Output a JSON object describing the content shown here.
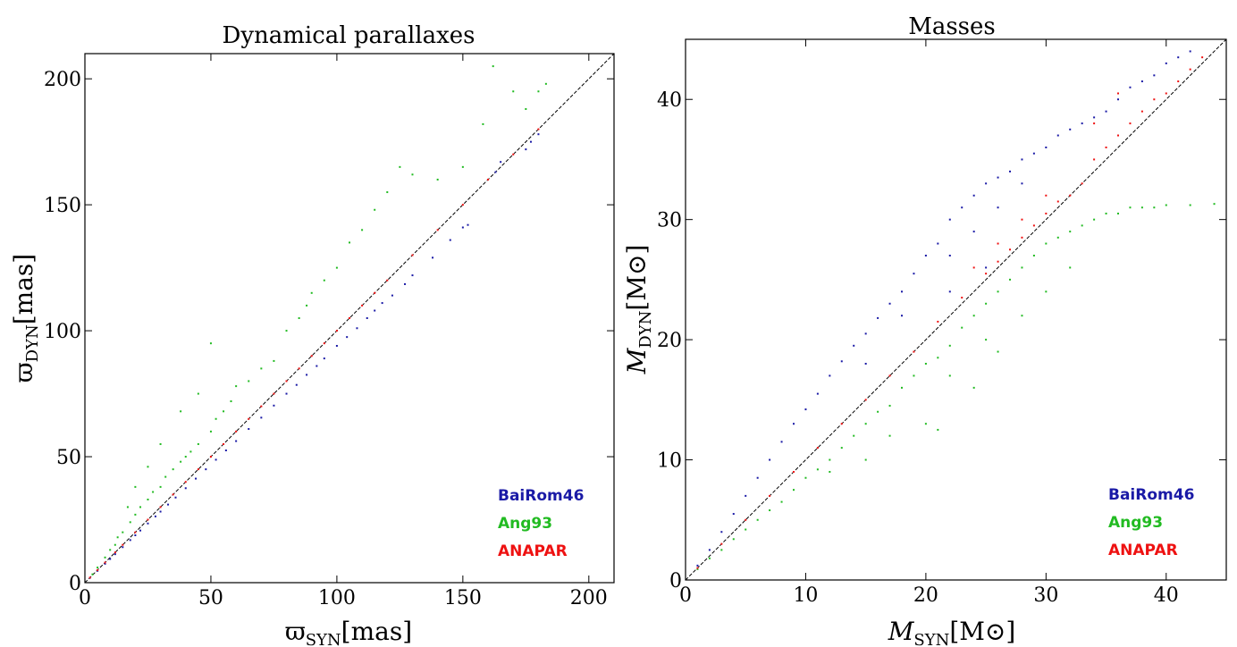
{
  "colors": {
    "BaiRom46": "#1a1aa6",
    "Ang93": "#22bb22",
    "ANAPAR": "#ee1111"
  },
  "chart_data": [
    {
      "type": "scatter",
      "title": "Dynamical parallaxes",
      "xlabel": {
        "symbol": "ϖ",
        "sub": "SYN",
        "unit": "[mas]"
      },
      "ylabel": {
        "symbol": "ϖ",
        "sub": "DYN",
        "unit": "[mas]"
      },
      "xlim": [
        0,
        210
      ],
      "ylim": [
        0,
        210
      ],
      "xticks": [
        0,
        50,
        100,
        150,
        200
      ],
      "yticks": [
        0,
        50,
        100,
        150,
        200
      ],
      "grid": false,
      "legend_position": "bottom-right",
      "reference_line": "y = x",
      "series": [
        {
          "name": "BaiRom46",
          "color": "#1a1aa6",
          "points": [
            [
              2,
              1.9
            ],
            [
              5,
              4.7
            ],
            [
              8,
              7.5
            ],
            [
              10,
              9.4
            ],
            [
              12,
              11.3
            ],
            [
              15,
              14.1
            ],
            [
              18,
              16.9
            ],
            [
              20,
              18.8
            ],
            [
              22,
              20.7
            ],
            [
              25,
              23.5
            ],
            [
              28,
              26.3
            ],
            [
              30,
              28.2
            ],
            [
              33,
              31
            ],
            [
              36,
              33.8
            ],
            [
              40,
              37.5
            ],
            [
              44,
              41.3
            ],
            [
              48,
              45
            ],
            [
              52,
              48.8
            ],
            [
              56,
              52.5
            ],
            [
              60,
              56.2
            ],
            [
              65,
              61
            ],
            [
              70,
              65.5
            ],
            [
              75,
              70.3
            ],
            [
              80,
              75
            ],
            [
              84,
              78.5
            ],
            [
              88,
              82.5
            ],
            [
              92,
              86
            ],
            [
              95,
              89
            ],
            [
              100,
              94
            ],
            [
              104,
              97.5
            ],
            [
              108,
              101
            ],
            [
              112,
              105
            ],
            [
              115,
              108
            ],
            [
              118,
              111
            ],
            [
              122,
              114
            ],
            [
              127,
              118.5
            ],
            [
              130,
              122
            ],
            [
              138,
              129
            ],
            [
              145,
              136
            ],
            [
              150,
              141
            ],
            [
              152,
              142
            ],
            [
              163,
              163
            ],
            [
              165,
              167
            ],
            [
              175,
              172
            ],
            [
              177,
              175
            ],
            [
              180,
              178
            ]
          ]
        },
        {
          "name": "Ang93",
          "color": "#22bb22",
          "points": [
            [
              3,
              3.3
            ],
            [
              5,
              6
            ],
            [
              8,
              10
            ],
            [
              10,
              13
            ],
            [
              12,
              15
            ],
            [
              13,
              18
            ],
            [
              15,
              20
            ],
            [
              18,
              24
            ],
            [
              20,
              27
            ],
            [
              22,
              30
            ],
            [
              25,
              33
            ],
            [
              27,
              36
            ],
            [
              30,
              38
            ],
            [
              32,
              42
            ],
            [
              35,
              45
            ],
            [
              38,
              48
            ],
            [
              40,
              50
            ],
            [
              42,
              52
            ],
            [
              45,
              55
            ],
            [
              50,
              60
            ],
            [
              52,
              65
            ],
            [
              55,
              68
            ],
            [
              58,
              72
            ],
            [
              60,
              78
            ],
            [
              65,
              80
            ],
            [
              70,
              85
            ],
            [
              75,
              88
            ],
            [
              80,
              100
            ],
            [
              85,
              105
            ],
            [
              88,
              110
            ],
            [
              90,
              115
            ],
            [
              95,
              120
            ],
            [
              100,
              125
            ],
            [
              105,
              135
            ],
            [
              110,
              140
            ],
            [
              115,
              148
            ],
            [
              120,
              155
            ],
            [
              125,
              165
            ],
            [
              130,
              162
            ],
            [
              140,
              160
            ],
            [
              150,
              165
            ],
            [
              158,
              182
            ],
            [
              162,
              205
            ],
            [
              170,
              195
            ],
            [
              175,
              188
            ],
            [
              180,
              195
            ],
            [
              183,
              198
            ],
            [
              50,
              95
            ],
            [
              45,
              75
            ],
            [
              38,
              68
            ],
            [
              30,
              55
            ],
            [
              25,
              46
            ],
            [
              20,
              38
            ],
            [
              17,
              30
            ]
          ]
        },
        {
          "name": "ANAPAR",
          "color": "#ee1111",
          "points": [
            [
              2,
              2
            ],
            [
              5,
              5
            ],
            [
              8,
              8
            ],
            [
              12,
              12
            ],
            [
              15,
              15
            ],
            [
              20,
              20
            ],
            [
              25,
              25
            ],
            [
              30,
              30
            ],
            [
              35,
              35
            ],
            [
              40,
              40
            ],
            [
              45,
              45
            ],
            [
              50,
              50
            ],
            [
              55,
              55
            ],
            [
              60,
              60
            ],
            [
              65,
              65
            ],
            [
              70,
              70
            ],
            [
              75,
              75
            ],
            [
              80,
              80
            ],
            [
              85,
              85
            ],
            [
              90,
              90
            ],
            [
              95,
              95
            ],
            [
              100,
              100
            ],
            [
              105,
              105
            ],
            [
              110,
              110
            ],
            [
              115,
              115
            ],
            [
              120,
              120
            ],
            [
              130,
              130
            ],
            [
              140,
              140
            ],
            [
              150,
              150
            ],
            [
              160,
              160
            ],
            [
              170,
              170
            ],
            [
              180,
              180
            ]
          ]
        }
      ]
    },
    {
      "type": "scatter",
      "title": "Masses",
      "xlabel": {
        "symbol": "M",
        "sub": "SYN",
        "unit": "[M⊙]"
      },
      "ylabel": {
        "symbol": "M",
        "sub": "DYN",
        "unit": "[M⊙]"
      },
      "xlim": [
        0,
        45
      ],
      "ylim": [
        0,
        45
      ],
      "xticks": [
        0,
        10,
        20,
        30,
        40
      ],
      "yticks": [
        0,
        10,
        20,
        30,
        40
      ],
      "grid": false,
      "legend_position": "bottom-right",
      "reference_line": "y = x",
      "series": [
        {
          "name": "BaiRom46",
          "color": "#1a1aa6",
          "points": [
            [
              1,
              1.2
            ],
            [
              2,
              2.5
            ],
            [
              3,
              4
            ],
            [
              4,
              5.5
            ],
            [
              5,
              7
            ],
            [
              6,
              8.5
            ],
            [
              7,
              10
            ],
            [
              8,
              11.5
            ],
            [
              9,
              13
            ],
            [
              10,
              14.2
            ],
            [
              11,
              15.5
            ],
            [
              12,
              17
            ],
            [
              13,
              18.2
            ],
            [
              14,
              19.5
            ],
            [
              15,
              20.5
            ],
            [
              16,
              21.8
            ],
            [
              17,
              23
            ],
            [
              18,
              24
            ],
            [
              19,
              25.5
            ],
            [
              20,
              27
            ],
            [
              21,
              28
            ],
            [
              22,
              30
            ],
            [
              23,
              31
            ],
            [
              24,
              32
            ],
            [
              25,
              33
            ],
            [
              26,
              33.5
            ],
            [
              27,
              34
            ],
            [
              28,
              35
            ],
            [
              29,
              35.5
            ],
            [
              30,
              36
            ],
            [
              31,
              37
            ],
            [
              32,
              37.5
            ],
            [
              33,
              38
            ],
            [
              34,
              38.5
            ],
            [
              35,
              39
            ],
            [
              36,
              40
            ],
            [
              37,
              41
            ],
            [
              38,
              41.5
            ],
            [
              39,
              42
            ],
            [
              40,
              43
            ],
            [
              41,
              43.5
            ],
            [
              42,
              44
            ],
            [
              15,
              18
            ],
            [
              18,
              22
            ],
            [
              22,
              27
            ],
            [
              24,
              29
            ],
            [
              26,
              31
            ],
            [
              28,
              33
            ],
            [
              22,
              24
            ],
            [
              25,
              26
            ]
          ]
        },
        {
          "name": "Ang93",
          "color": "#22bb22",
          "points": [
            [
              1,
              0.9
            ],
            [
              2,
              1.8
            ],
            [
              3,
              2.5
            ],
            [
              4,
              3.4
            ],
            [
              5,
              4.2
            ],
            [
              6,
              5
            ],
            [
              7,
              5.8
            ],
            [
              8,
              6.5
            ],
            [
              9,
              7.5
            ],
            [
              10,
              8.5
            ],
            [
              11,
              9.2
            ],
            [
              12,
              10
            ],
            [
              13,
              11
            ],
            [
              14,
              12
            ],
            [
              15,
              13
            ],
            [
              16,
              14
            ],
            [
              17,
              14.5
            ],
            [
              18,
              16
            ],
            [
              19,
              17
            ],
            [
              20,
              18
            ],
            [
              21,
              18.5
            ],
            [
              22,
              19.5
            ],
            [
              23,
              21
            ],
            [
              24,
              22
            ],
            [
              25,
              23
            ],
            [
              26,
              24
            ],
            [
              27,
              25
            ],
            [
              28,
              26
            ],
            [
              29,
              27
            ],
            [
              30,
              28
            ],
            [
              31,
              28.5
            ],
            [
              32,
              29
            ],
            [
              33,
              29.5
            ],
            [
              34,
              30
            ],
            [
              35,
              30.5
            ],
            [
              36,
              30.5
            ],
            [
              37,
              31
            ],
            [
              38,
              31
            ],
            [
              39,
              31
            ],
            [
              40,
              31.2
            ],
            [
              42,
              31.2
            ],
            [
              44,
              31.3
            ],
            [
              20,
              13
            ],
            [
              22,
              17
            ],
            [
              25,
              20
            ],
            [
              28,
              22
            ],
            [
              30,
              24
            ],
            [
              32,
              26
            ],
            [
              17,
              12
            ],
            [
              15,
              10
            ],
            [
              12,
              9
            ],
            [
              21,
              12.5
            ],
            [
              24,
              16
            ],
            [
              26,
              19
            ]
          ]
        },
        {
          "name": "ANAPAR",
          "color": "#ee1111",
          "points": [
            [
              1,
              1
            ],
            [
              3,
              3
            ],
            [
              5,
              5
            ],
            [
              7,
              7
            ],
            [
              9,
              9
            ],
            [
              11,
              11
            ],
            [
              13,
              13
            ],
            [
              15,
              15
            ],
            [
              17,
              17
            ],
            [
              19,
              19
            ],
            [
              21,
              21.5
            ],
            [
              23,
              23.5
            ],
            [
              25,
              25.5
            ],
            [
              26,
              26.5
            ],
            [
              27,
              27.5
            ],
            [
              28,
              28.5
            ],
            [
              29,
              29.5
            ],
            [
              30,
              30.5
            ],
            [
              31,
              31.5
            ],
            [
              32,
              32
            ],
            [
              33,
              33
            ],
            [
              34,
              35
            ],
            [
              35,
              36
            ],
            [
              36,
              37
            ],
            [
              37,
              38
            ],
            [
              38,
              39
            ],
            [
              39,
              40
            ],
            [
              40,
              40.5
            ],
            [
              41,
              41.5
            ],
            [
              42,
              42.5
            ],
            [
              43,
              43.5
            ],
            [
              24,
              26
            ],
            [
              26,
              28
            ],
            [
              28,
              30
            ],
            [
              30,
              32
            ],
            [
              34,
              38
            ],
            [
              36,
              40.5
            ]
          ]
        }
      ]
    }
  ]
}
